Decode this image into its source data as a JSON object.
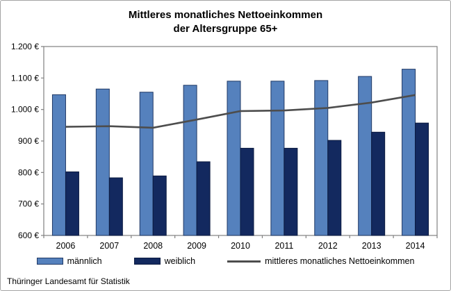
{
  "title": {
    "line1": "Mittleres monatliches Nettoeinkommen",
    "line2": "der Altersgruppe 65+"
  },
  "footer": {
    "source": "Thüringer Landesamt für Statistik"
  },
  "legend": {
    "items": [
      {
        "label": "männlich",
        "swatch": "box",
        "color": "#5581BD",
        "border": "#1F3864"
      },
      {
        "label": "weiblich",
        "swatch": "box",
        "color": "#13295F",
        "border": "#0B1A40"
      },
      {
        "label": "mittleres monatliches Nettoeinkommen",
        "swatch": "line",
        "color": "#4D4D4D"
      }
    ]
  },
  "chart_data": {
    "type": "bar",
    "title": "Mittleres monatliches Nettoeinkommen der Altersgruppe 65+",
    "categories": [
      "2006",
      "2007",
      "2008",
      "2009",
      "2010",
      "2011",
      "2012",
      "2013",
      "2014"
    ],
    "series": [
      {
        "name": "männlich",
        "type": "bar",
        "color": "#5581BD",
        "border": "#1F3864",
        "values": [
          1047,
          1065,
          1055,
          1077,
          1090,
          1090,
          1092,
          1105,
          1128
        ]
      },
      {
        "name": "weiblich",
        "type": "bar",
        "color": "#13295F",
        "border": "#0B1A40",
        "values": [
          802,
          783,
          789,
          834,
          877,
          877,
          902,
          928,
          957
        ]
      },
      {
        "name": "mittleres monatliches Nettoeinkommen",
        "type": "line",
        "color": "#4D4D4D",
        "values": [
          945,
          947,
          942,
          968,
          995,
          997,
          1005,
          1022,
          1046
        ]
      }
    ],
    "xlabel": "",
    "ylabel": "",
    "ylim": [
      600,
      1200
    ],
    "ytick_values": [
      600,
      700,
      800,
      900,
      1000,
      1100,
      1200
    ],
    "ytick_labels": [
      "600 €",
      "700 €",
      "800 €",
      "900 €",
      "1.000 €",
      "1.100 €",
      "1.200 €"
    ],
    "currency_suffix": "€",
    "grid": false,
    "legend_position": "bottom",
    "axis_color": "#808080"
  }
}
